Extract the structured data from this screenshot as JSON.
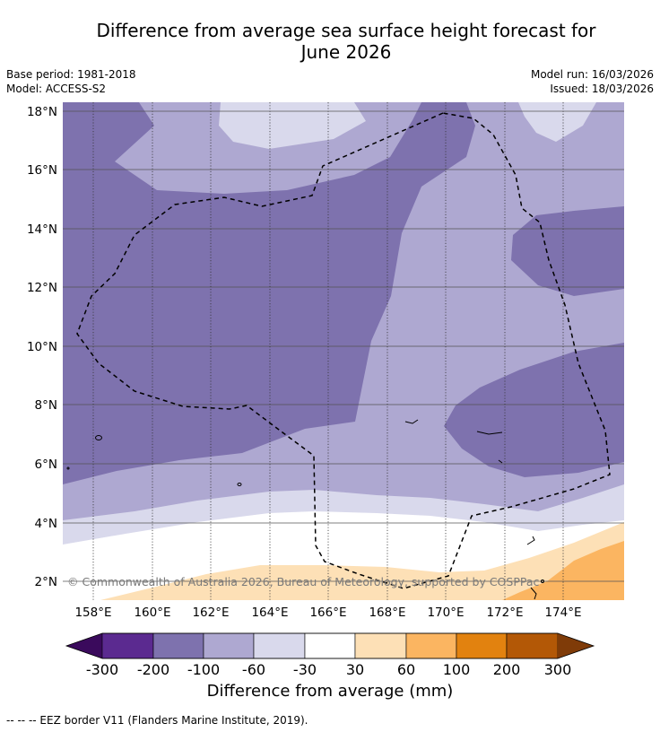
{
  "title_line1": "Difference from average sea surface height forecast for",
  "title_line2": "June 2026",
  "meta": {
    "base_period": "Base period: 1981-2018",
    "model": "Model: ACCESS-S2",
    "model_run": "Model run: 16/03/2026",
    "issued": "Issued: 18/03/2026"
  },
  "map": {
    "lat_labels": [
      "18°N",
      "16°N",
      "14°N",
      "12°N",
      "10°N",
      "8°N",
      "6°N",
      "4°N",
      "2°N"
    ],
    "lat_values": [
      18,
      16,
      14,
      12,
      10,
      8,
      6,
      4,
      2
    ],
    "lon_labels": [
      "158°E",
      "160°E",
      "162°E",
      "164°E",
      "166°E",
      "168°E",
      "170°E",
      "172°E",
      "174°E"
    ],
    "lon_values": [
      158,
      160,
      162,
      164,
      166,
      168,
      170,
      172,
      174
    ],
    "copyright": "© Commonwealth of Australia 2026, Bureau of Meteorology, supported by COSPPac"
  },
  "colorbar": {
    "tick_labels": [
      "-300",
      "-200",
      "-100",
      "-60",
      "-30",
      "30",
      "60",
      "100",
      "200",
      "300"
    ],
    "colors": [
      "#5b2a90",
      "#7e72ae",
      "#aea8d1",
      "#d9d9ec",
      "#ffffff",
      "#fde0b6",
      "#fbb561",
      "#e2820f",
      "#b35806"
    ],
    "under_color": "#3a0a5c",
    "over_color": "#7f3b08",
    "title": "Difference from average (mm)"
  },
  "footer": "--  --  -- EEZ border V11 (Flanders Marine Institute, 2019)."
}
